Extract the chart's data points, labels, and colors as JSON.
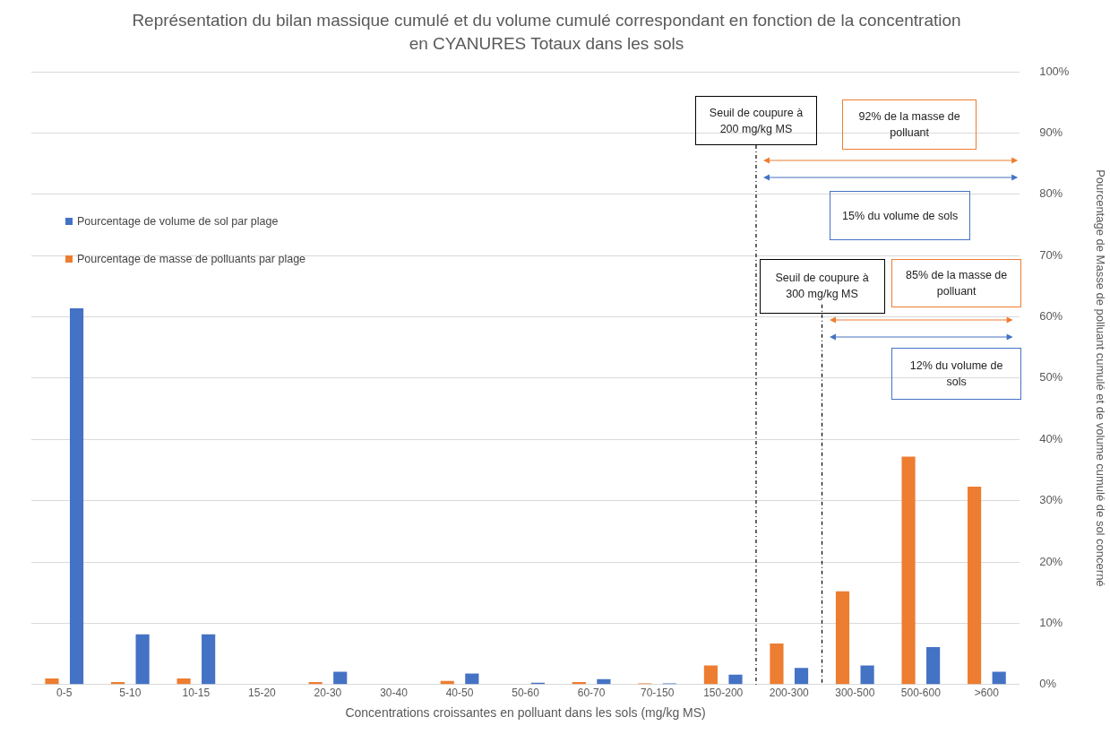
{
  "chart_data": {
    "type": "bar",
    "title": "Représentation du bilan massique cumulé et du volume cumulé correspondant en fonction de la concentration en CYANURES Totaux dans les sols",
    "xlabel": "Concentrations croissantes en polluant dans les sols (mg/kg MS)",
    "y2label": "Pourcentage de Masse de polluant cumulé et de volume cumulé de sol concerné",
    "categories": [
      "0-5",
      "5-10",
      "10-15",
      "15-20",
      "20-30",
      "30-40",
      "40-50",
      "50-60",
      "60-70",
      "70-150",
      "150-200",
      "200-300",
      "300-500",
      "500-600",
      ">600"
    ],
    "series": [
      {
        "name": "Pourcentage de masse de polluants par plage",
        "color": "#ed7d31",
        "axis": "y2",
        "values": [
          1.0,
          0.4,
          1.0,
          0,
          0.4,
          0,
          0.6,
          0,
          0.4,
          0.2,
          3.1,
          6.7,
          15.2,
          37.2,
          32.3
        ]
      },
      {
        "name": "Pourcentage de volume de sol par plage",
        "color": "#4472c4",
        "axis": "y2",
        "values": [
          61.4,
          8.2,
          8.2,
          0,
          2.1,
          0,
          1.8,
          0.3,
          0.9,
          0.2,
          1.6,
          2.7,
          3.1,
          6.1,
          2.1
        ]
      }
    ],
    "y2lim": [
      0,
      100
    ],
    "y2ticks": [
      {
        "value": 0,
        "label": "0%"
      },
      {
        "value": 10,
        "label": "10%"
      },
      {
        "value": 20,
        "label": "20%"
      },
      {
        "value": 30,
        "label": "30%"
      },
      {
        "value": 40,
        "label": "40%"
      },
      {
        "value": 50,
        "label": "50%"
      },
      {
        "value": 60,
        "label": "60%"
      },
      {
        "value": 70,
        "label": "70%"
      },
      {
        "value": 80,
        "label": "80%"
      },
      {
        "value": 90,
        "label": "90%"
      },
      {
        "value": 100,
        "label": "100%"
      }
    ],
    "ref_lines": [
      {
        "axis": "x",
        "value": "200-300",
        "label": "Seuil de coupure à 200 mg/kg MS",
        "color": "#000000",
        "line_style": "dashed"
      },
      {
        "axis": "x",
        "value": "300-500",
        "label": "Seuil de coupure à 300 mg/kg MS",
        "color": "#000000",
        "line_style": "dashed"
      }
    ],
    "annotations": [
      "92% de la masse de polluant",
      "15% du volume de sols",
      "85% de la masse de polluant",
      "12% du volume de sols"
    ],
    "grid": "y",
    "legend": "top left"
  }
}
